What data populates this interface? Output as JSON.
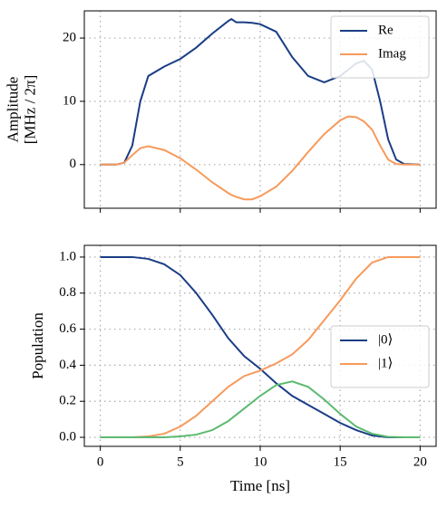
{
  "chart_data": [
    {
      "type": "line",
      "ylabel": [
        "Amplitude",
        "[MHz / 2π]"
      ],
      "x": [
        0,
        1,
        1.5,
        2,
        2.5,
        3,
        4,
        5,
        6,
        7,
        8,
        8.2,
        8.5,
        9,
        9.5,
        10,
        11,
        12,
        13,
        14,
        15,
        15.5,
        16,
        16.5,
        17,
        17.5,
        18,
        18.5,
        19,
        20
      ],
      "series": [
        {
          "name": "Re",
          "color": "#1a3d85",
          "values": [
            0,
            0,
            0.3,
            3,
            10,
            14,
            15.5,
            16.7,
            18.5,
            20.7,
            22.7,
            23,
            22.5,
            22.5,
            22.4,
            22.2,
            21,
            17,
            14,
            13,
            14,
            15,
            16,
            16.4,
            15,
            10,
            4,
            0.8,
            0.1,
            0
          ]
        },
        {
          "name": "Imag",
          "color": "#f79a5c",
          "values": [
            0,
            0,
            0.3,
            1.5,
            2.6,
            2.9,
            2.3,
            1,
            -0.8,
            -2.8,
            -4.5,
            -4.8,
            -5.1,
            -5.5,
            -5.5,
            -5,
            -3.5,
            -1,
            2,
            4.8,
            7,
            7.6,
            7.5,
            6.8,
            5.5,
            3,
            0.8,
            0.1,
            0,
            0
          ]
        }
      ],
      "xlim": [
        -1,
        21
      ],
      "xticks": [
        0,
        5,
        10,
        15,
        20
      ],
      "show_xtick_labels": false,
      "ylim": [
        -6.9,
        24.3
      ],
      "yticks": [
        0,
        10,
        20
      ],
      "grid": true,
      "legend": "upper right"
    },
    {
      "type": "line",
      "xlabel": "Time [ns]",
      "ylabel": [
        "Population"
      ],
      "x": [
        0,
        1,
        2,
        3,
        4,
        5,
        6,
        7,
        8,
        9,
        10,
        11,
        12,
        13,
        14,
        15,
        16,
        17,
        18,
        19,
        20
      ],
      "series": [
        {
          "name": "|0⟩",
          "color": "#1a3d85",
          "values": [
            1,
            1,
            1,
            0.99,
            0.96,
            0.9,
            0.8,
            0.68,
            0.55,
            0.45,
            0.38,
            0.3,
            0.23,
            0.18,
            0.13,
            0.08,
            0.04,
            0.01,
            0,
            0,
            0
          ]
        },
        {
          "name": "|1⟩",
          "color": "#f79a5c",
          "values": [
            0,
            0,
            0,
            0.005,
            0.02,
            0.06,
            0.12,
            0.2,
            0.28,
            0.34,
            0.37,
            0.41,
            0.46,
            0.54,
            0.65,
            0.76,
            0.88,
            0.97,
            1,
            1,
            1
          ]
        },
        {
          "color": "#5cba70",
          "values": [
            0,
            0,
            0,
            0,
            0,
            0.005,
            0.015,
            0.04,
            0.09,
            0.16,
            0.23,
            0.29,
            0.31,
            0.28,
            0.21,
            0.13,
            0.06,
            0.02,
            0.003,
            0,
            0
          ]
        }
      ],
      "xlim": [
        -1,
        21
      ],
      "xticks": [
        0,
        5,
        10,
        15,
        20
      ],
      "show_xtick_labels": true,
      "ylim": [
        -0.05,
        1.065
      ],
      "yticks": [
        {
          "value": 0,
          "label": "0.0"
        },
        {
          "value": 0.2,
          "label": "0.2"
        },
        {
          "value": 0.4,
          "label": "0.4"
        },
        {
          "value": 0.6,
          "label": "0.6"
        },
        {
          "value": 0.8,
          "label": "0.8"
        },
        {
          "value": 1,
          "label": "1.0"
        }
      ],
      "grid": true,
      "legend": "center right"
    }
  ]
}
